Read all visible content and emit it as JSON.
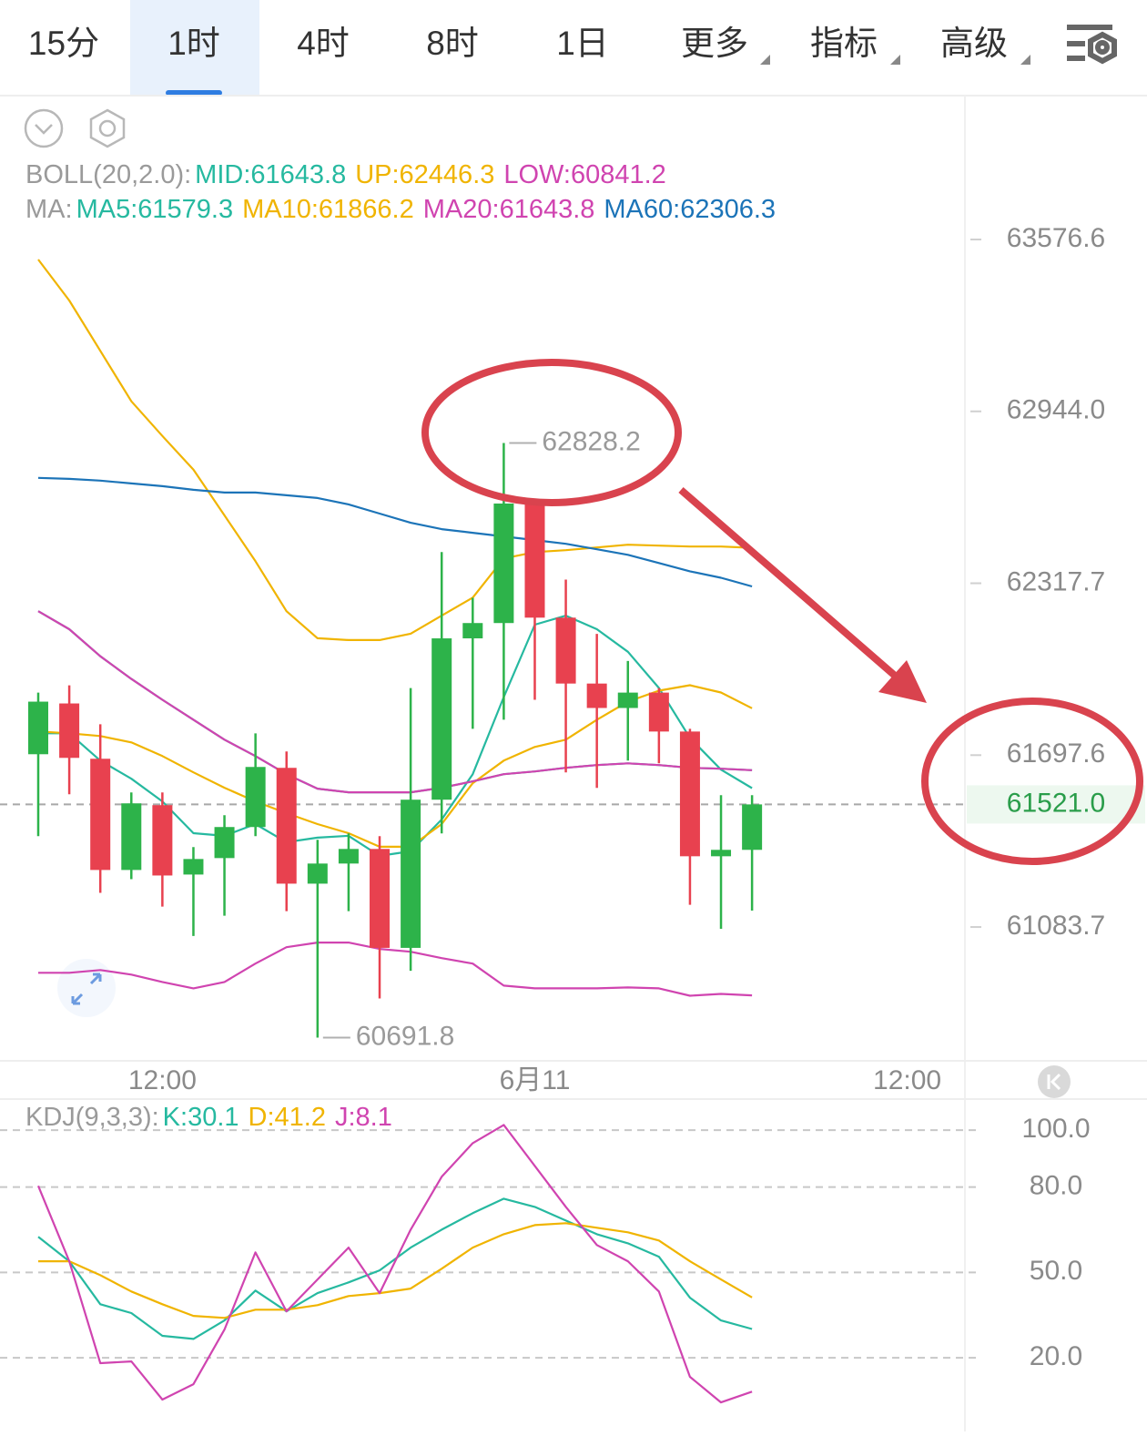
{
  "tabs": {
    "items": [
      "15分",
      "1时",
      "4时",
      "8时",
      "1日",
      "更多",
      "指标",
      "高级"
    ],
    "selected": 1
  },
  "chart_data": [
    {
      "type": "candlestick",
      "scale": "log",
      "ylim": [
        60610,
        64111
      ],
      "yticks": [
        63576.6,
        {
          "value": 62944.0,
          "label": "62944.0"
        },
        62317.7,
        61697.6,
        61083.7
      ],
      "xlim": [
        -1.232,
        29.86
      ],
      "xticks": [
        {
          "value": 4,
          "label": "12:00"
        },
        {
          "value": 16,
          "label": "6月11"
        },
        {
          "value": 28,
          "label": "12:00"
        }
      ],
      "up_color": "#2db34a",
      "down_color": "#e8414f",
      "open": [
        61700.9,
        61883.4,
        61684.6,
        61286.8,
        61518.3,
        61270.5,
        61329.2,
        61440.1,
        61652.0,
        61238.0,
        61309.7,
        61361.8,
        61009.7,
        61537.9,
        62118.2,
        62173.6,
        62607.4,
        62193.1,
        61955.1,
        61867.1,
        61922.5,
        61782.4,
        61335.7,
        61358.6
      ],
      "high": [
        61922.5,
        61948.6,
        61808.4,
        61563.9,
        61563.9,
        61368.3,
        61482.4,
        61775.8,
        61710.6,
        61394.4,
        61417.2,
        61407.5,
        61938.8,
        62430.9,
        62264.8,
        62828.2,
        62607.4,
        62331.0,
        62134.4,
        62036.6,
        61938.8,
        61792.1,
        61554.2,
        61554.2
      ],
      "low": [
        61407.5,
        61557.4,
        61205.3,
        61254.0,
        61156.2,
        61052.1,
        61123.8,
        61407.5,
        61140.1,
        60691.8,
        61140.1,
        60830.3,
        60928.2,
        61417.2,
        61792.1,
        61824.8,
        61896.5,
        61635.7,
        61580.2,
        61678.0,
        61668.3,
        61162.9,
        61077.2,
        61142.2
      ],
      "close": [
        61889.9,
        61687.8,
        61286.8,
        61524.8,
        61267.1,
        61325.9,
        61440.1,
        61655.2,
        61238.0,
        61309.7,
        61361.8,
        61009.7,
        61537.9,
        62118.2,
        62173.6,
        62607.4,
        62193.1,
        61955.1,
        61867.1,
        61922.5,
        61782.4,
        61335.7,
        61358.6,
        61521.0
      ],
      "current_price": {
        "value": 61521.0,
        "label": "61521.0"
      },
      "indicators": [
        {
          "title": "BOLL(20,2.0):",
          "series": [
            {
              "name": "MID:",
              "color": "#26b9a0",
              "values": [
                62216.6,
                62151.3,
                62053.4,
                61971.8,
                61896.7,
                61824.9,
                61753.1,
                61694.3,
                61629.4,
                61577.4,
                61564.4,
                61564.4,
                61564.4,
                61580.6,
                61603.4,
                61629.4,
                61639.1,
                61652.1,
                61661.8,
                61668.3,
                61661.8,
                61652.1,
                61648.9,
                61643.8
              ]
            },
            {
              "name": "UP:",
              "color": "#f0b400",
              "values": [
                63502.6,
                63351.2,
                63166.1,
                62981.0,
                62854.0,
                62730.8,
                62564.2,
                62397.6,
                62216.6,
                62118.7,
                62112.1,
                62112.1,
                62135.0,
                62200.3,
                62265.6,
                62407.6,
                62430.9,
                62437.6,
                62447.6,
                62457.6,
                62454.2,
                62450.9,
                62450.9,
                62446.3
              ]
            },
            {
              "name": "LOW:",
              "color": "#d044b0",
              "values": [
                60921.3,
                60921.3,
                60931.0,
                60914.8,
                60888.8,
                60866.1,
                60888.8,
                60953.8,
                61012.2,
                61028.5,
                61028.5,
                61005.8,
                60996.0,
                60973.3,
                60953.8,
                60875.8,
                60866.1,
                60866.1,
                60866.1,
                60869.3,
                60866.1,
                60840.1,
                60846.6,
                60841.2
              ]
            }
          ]
        },
        {
          "title": "MA:",
          "series": [
            {
              "name": "MA5:",
              "color": "#26b9a0",
              "values": [
                61776.0,
                61776.0,
                61678.1,
                61613.1,
                61531.9,
                61418.2,
                61408.5,
                61450.7,
                61385.8,
                61402.0,
                61408.5,
                61337.0,
                61353.3,
                61467.0,
                61629.4,
                61906.5,
                62167.6,
                62200.3,
                62151.3,
                62069.7,
                61939.2,
                61759.6,
                61645.6,
                61579.3
              ]
            },
            {
              "name": "MA10:",
              "color": "#f0b400",
              "values": [
                61782.5,
                61776.0,
                61766.1,
                61743.3,
                61694.3,
                61635.9,
                61580.6,
                61531.9,
                61489.7,
                61450.7,
                61418.2,
                61369.5,
                61369.5,
                61450.7,
                61596.9,
                61678.1,
                61727.0,
                61753.1,
                61824.9,
                61890.2,
                61929.4,
                61949.0,
                61922.8,
                61866.2
              ]
            },
            {
              "name": "MA20:",
              "color": "#d044b0",
              "values": [
                62216.6,
                62151.3,
                62053.4,
                61971.8,
                61896.7,
                61824.9,
                61753.1,
                61694.3,
                61629.4,
                61577.4,
                61564.4,
                61564.4,
                61564.4,
                61580.6,
                61603.4,
                61629.4,
                61639.1,
                61652.1,
                61661.8,
                61668.3,
                61661.8,
                61652.1,
                61648.9,
                61643.8
              ]
            },
            {
              "name": "MA60:",
              "color": "#1c74b8",
              "values": [
                62700.8,
                62697.4,
                62690.8,
                62680.8,
                62670.8,
                62657.5,
                62647.5,
                62647.5,
                62637.5,
                62627.5,
                62604.2,
                62570.9,
                62537.5,
                62514.2,
                62500.9,
                62487.6,
                62474.3,
                62460.9,
                62440.9,
                62421.0,
                62391.0,
                62361.0,
                62337.7,
                62306.3
              ]
            }
          ]
        }
      ]
    },
    {
      "type": "line",
      "title": "KDJ(9,3,3):",
      "ylim": [
        -5.9,
        110.9
      ],
      "yticks": [
        {
          "value": 100,
          "label": "100.0"
        },
        {
          "value": 80,
          "label": "80.0"
        },
        {
          "value": 50,
          "label": "50.0"
        },
        {
          "value": 20,
          "label": "20.0"
        }
      ],
      "xlim": [
        -1.232,
        29.86
      ],
      "grid": true,
      "series": [
        {
          "name": "K:",
          "color": "#26b9a0",
          "values": [
            62.5,
            53.9,
            38.8,
            35.7,
            27.7,
            26.6,
            33.1,
            43.6,
            36.3,
            42.7,
            46.5,
            50.7,
            58.7,
            65.0,
            70.8,
            75.9,
            73.0,
            68.2,
            63.4,
            60.2,
            55.5,
            41.1,
            33.1,
            30.1
          ]
        },
        {
          "name": "D:",
          "color": "#f0b400",
          "values": [
            53.9,
            53.9,
            49.0,
            43.3,
            38.8,
            34.7,
            34.0,
            36.9,
            36.9,
            38.5,
            41.7,
            42.7,
            44.3,
            51.3,
            58.7,
            63.4,
            66.6,
            67.3,
            65.7,
            64.1,
            61.2,
            53.9,
            47.5,
            41.2
          ]
        },
        {
          "name": "J:",
          "color": "#d044b0",
          "values": [
            80.4,
            53.9,
            18.1,
            18.7,
            5.3,
            10.7,
            29.9,
            57.0,
            36.3,
            47.5,
            58.7,
            42.7,
            65.0,
            83.6,
            95.4,
            101.8,
            87.4,
            73.0,
            59.6,
            53.9,
            43.3,
            13.3,
            4.3,
            8.1
          ]
        }
      ]
    }
  ]
}
